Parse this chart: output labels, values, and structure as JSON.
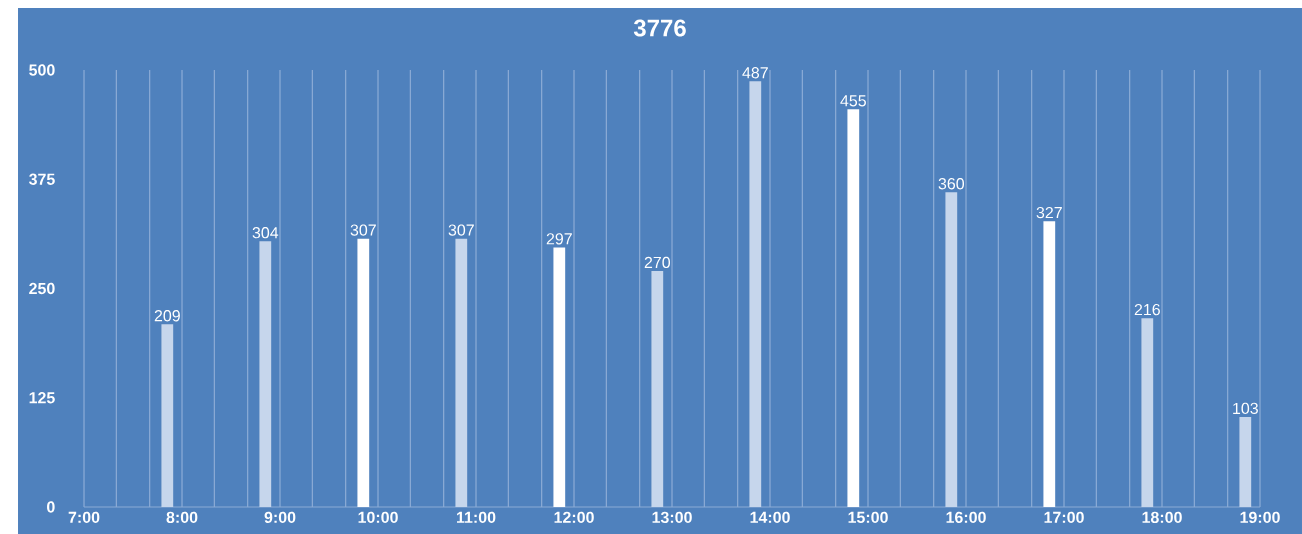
{
  "chart_data": {
    "type": "bar",
    "title": "3776",
    "x": [
      7.85,
      8.85,
      9.85,
      10.85,
      11.85,
      12.85,
      13.85,
      14.85,
      15.85,
      16.85,
      17.85,
      18.85
    ],
    "series": [
      {
        "color": "#c6d6ec",
        "values": [
          209,
          304,
          null,
          307,
          null,
          270,
          487,
          null,
          360,
          null,
          216,
          103
        ]
      },
      {
        "color": "#ffffff",
        "values": [
          null,
          null,
          307,
          null,
          297,
          null,
          null,
          455,
          null,
          327,
          null,
          null
        ]
      }
    ],
    "xlim": [
      7,
      19
    ],
    "xticks": [
      {
        "value": 7,
        "label": "7:00"
      },
      {
        "value": 7.33,
        "label": null
      },
      {
        "value": 7.67,
        "label": null
      },
      {
        "value": 8,
        "label": "8:00"
      },
      {
        "value": 8.33,
        "label": null
      },
      {
        "value": 8.67,
        "label": null
      },
      {
        "value": 9,
        "label": "9:00"
      },
      {
        "value": 9.33,
        "label": null
      },
      {
        "value": 9.67,
        "label": null
      },
      {
        "value": 10,
        "label": "10:00"
      },
      {
        "value": 10.33,
        "label": null
      },
      {
        "value": 10.67,
        "label": null
      },
      {
        "value": 11,
        "label": "11:00"
      },
      {
        "value": 11.33,
        "label": null
      },
      {
        "value": 11.67,
        "label": null
      },
      {
        "value": 12,
        "label": "12:00"
      },
      {
        "value": 12.33,
        "label": null
      },
      {
        "value": 12.67,
        "label": null
      },
      {
        "value": 13,
        "label": "13:00"
      },
      {
        "value": 13.33,
        "label": null
      },
      {
        "value": 13.67,
        "label": null
      },
      {
        "value": 14,
        "label": "14:00"
      },
      {
        "value": 14.33,
        "label": null
      },
      {
        "value": 14.67,
        "label": null
      },
      {
        "value": 15,
        "label": "15:00"
      },
      {
        "value": 15.33,
        "label": null
      },
      {
        "value": 15.67,
        "label": null
      },
      {
        "value": 16,
        "label": "16:00"
      },
      {
        "value": 16.33,
        "label": null
      },
      {
        "value": 16.67,
        "label": null
      },
      {
        "value": 17,
        "label": "17:00"
      },
      {
        "value": 17.33,
        "label": null
      },
      {
        "value": 17.67,
        "label": null
      },
      {
        "value": 18,
        "label": "18:00"
      },
      {
        "value": 18.33,
        "label": null
      },
      {
        "value": 18.67,
        "label": null
      },
      {
        "value": 19,
        "label": "19:00"
      }
    ],
    "ylim": [
      0,
      500
    ],
    "yticks": [
      0,
      125,
      250,
      375,
      500
    ],
    "grid": "x",
    "data_labels": true
  }
}
